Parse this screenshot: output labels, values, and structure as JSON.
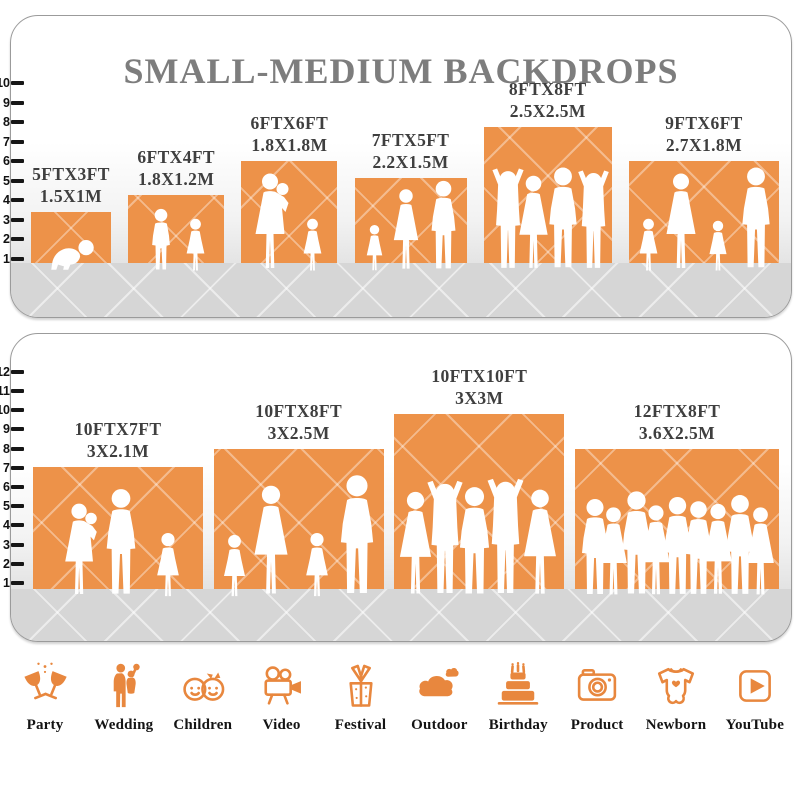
{
  "title": "SMALL-MEDIUM BACKDROPS",
  "colors": {
    "accent": "#ED9249",
    "icon_orange": "#E8873E",
    "title_gray": "#7D7D7D",
    "label_dark": "#3F3F3F"
  },
  "panels": [
    {
      "id": "top",
      "ticks": [
        1,
        2,
        3,
        4,
        5,
        6,
        7,
        8,
        9,
        10
      ],
      "backdrops": [
        {
          "size_ft": "5FTX3FT",
          "size_m": "1.5X1M",
          "width_ft": 5,
          "height_ft": 3
        },
        {
          "size_ft": "6FTX4FT",
          "size_m": "1.8X1.2M",
          "width_ft": 6,
          "height_ft": 4
        },
        {
          "size_ft": "6FTX6FT",
          "size_m": "1.8X1.8M",
          "width_ft": 6,
          "height_ft": 6
        },
        {
          "size_ft": "7FTX5FT",
          "size_m": "2.2X1.5M",
          "width_ft": 7,
          "height_ft": 5
        },
        {
          "size_ft": "8FTX8FT",
          "size_m": "2.5X2.5M",
          "width_ft": 8,
          "height_ft": 8
        },
        {
          "size_ft": "9FTX6FT",
          "size_m": "2.7X1.8M",
          "width_ft": 9,
          "height_ft": 6
        }
      ]
    },
    {
      "id": "bottom",
      "ticks": [
        1,
        2,
        3,
        4,
        5,
        6,
        7,
        8,
        9,
        10,
        11,
        12
      ],
      "backdrops": [
        {
          "size_ft": "10FTX7FT",
          "size_m": "3X2.1M",
          "width_ft": 10,
          "height_ft": 7
        },
        {
          "size_ft": "10FTX8FT",
          "size_m": "3X2.5M",
          "width_ft": 10,
          "height_ft": 8
        },
        {
          "size_ft": "10FTX10FT",
          "size_m": "3X3M",
          "width_ft": 10,
          "height_ft": 10
        },
        {
          "size_ft": "12FTX8FT",
          "size_m": "3.6X2.5M",
          "width_ft": 12,
          "height_ft": 8
        }
      ]
    }
  ],
  "categories": [
    {
      "label": "Party",
      "icon": "party-icon"
    },
    {
      "label": "Wedding",
      "icon": "wedding-icon"
    },
    {
      "label": "Children",
      "icon": "children-icon"
    },
    {
      "label": "Video",
      "icon": "video-icon"
    },
    {
      "label": "Festival",
      "icon": "festival-icon"
    },
    {
      "label": "Outdoor",
      "icon": "outdoor-icon"
    },
    {
      "label": "Birthday",
      "icon": "birthday-icon"
    },
    {
      "label": "Product",
      "icon": "product-icon"
    },
    {
      "label": "Newborn",
      "icon": "newborn-icon"
    },
    {
      "label": "YouTube",
      "icon": "youtube-icon"
    }
  ]
}
